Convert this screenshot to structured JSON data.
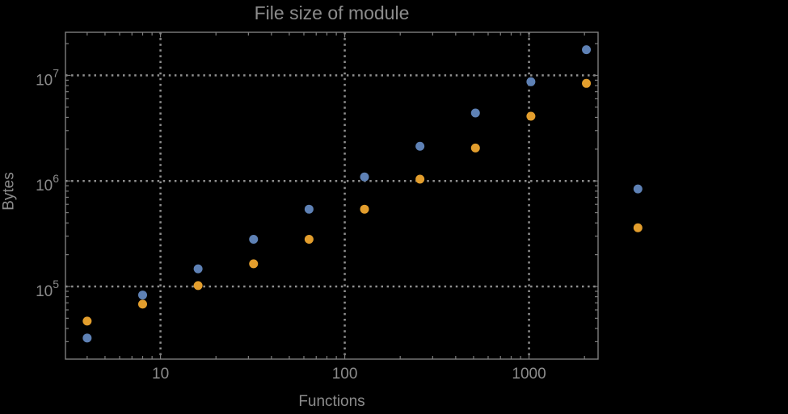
{
  "colors": {
    "background": "#000000",
    "frame": "#7E7E7E",
    "grid": "#8F8F8F",
    "text": "#8C8C8C",
    "series_blue": "#5E81B5",
    "series_orange": "#E39E2D"
  },
  "chart_data": {
    "type": "scatter",
    "title": "File size of module",
    "xlabel": "Functions",
    "ylabel": "Bytes",
    "x_scale": "log",
    "y_scale": "log",
    "grid": "dotted lines at powers of ten",
    "legend": "none",
    "x_axis": {
      "label": "Functions",
      "range": [
        3.05,
        2370
      ],
      "major_ticks": [
        10,
        100,
        1000
      ],
      "tick_labels": [
        "10",
        "100",
        "1000"
      ]
    },
    "y_axis": {
      "label": "Bytes",
      "range": [
        20500,
        25600000
      ],
      "major_ticks": [
        100000,
        1000000,
        10000000
      ],
      "tick_base": "10",
      "tick_exponents": [
        5,
        6,
        7
      ]
    },
    "x": [
      4,
      8,
      16,
      32,
      64,
      128,
      256,
      512,
      1024,
      2048,
      3900
    ],
    "series": [
      {
        "name": "blue",
        "color": "#5E81B5",
        "values": [
          32500,
          83000,
          147000,
          280000,
          540000,
          1090000,
          2130000,
          4400000,
          8700000,
          17500000,
          840000
        ]
      },
      {
        "name": "orange",
        "color": "#E39E2D",
        "values": [
          47000,
          68000,
          102000,
          164000,
          280000,
          540000,
          1040000,
          2050000,
          4100000,
          8400000,
          360000
        ]
      }
    ],
    "note_points_outside_frame": "the rightmost blue and orange points are drawn outside the right frame edge"
  }
}
